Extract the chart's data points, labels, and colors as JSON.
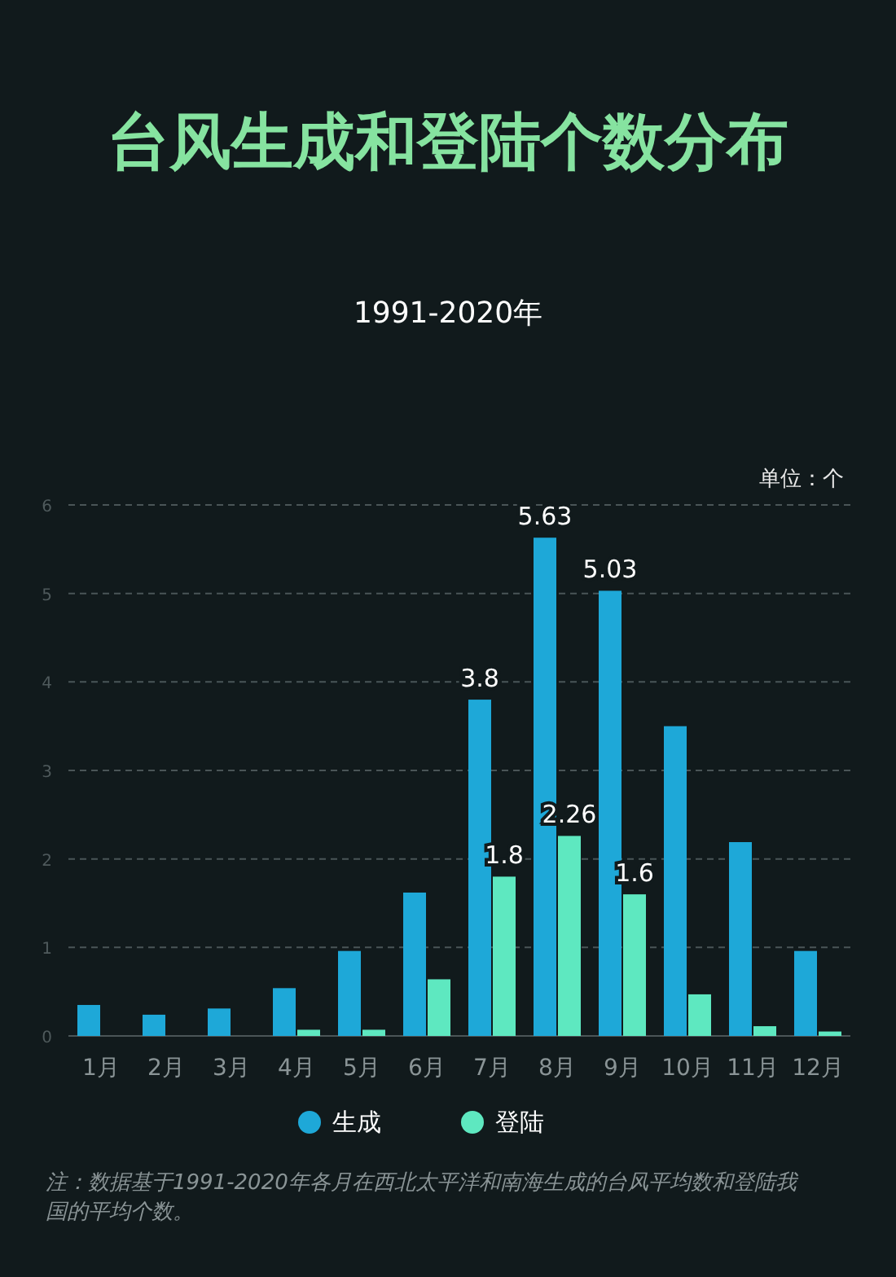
{
  "chart_data": {
    "type": "bar",
    "title": "台风生成和登陆个数分布",
    "subtitle": "1991-2020年",
    "ylabel": "单位：个",
    "categories": [
      "1月",
      "2月",
      "3月",
      "4月",
      "5月",
      "6月",
      "7月",
      "8月",
      "9月",
      "10月",
      "11月",
      "12月"
    ],
    "series": [
      {
        "name": "生成",
        "color": "#1ea8d8",
        "values": [
          0.35,
          0.24,
          0.31,
          0.54,
          0.96,
          1.62,
          3.8,
          5.63,
          5.03,
          3.5,
          2.19,
          0.96
        ],
        "value_labels": [
          null,
          null,
          null,
          null,
          null,
          null,
          "3.8",
          "5.63",
          "5.03",
          null,
          null,
          null
        ]
      },
      {
        "name": "登陆",
        "color": "#5ee8c0",
        "values": [
          0,
          0,
          0,
          0.07,
          0.07,
          0.64,
          1.8,
          2.26,
          1.6,
          0.47,
          0.11,
          0.05
        ],
        "value_labels": [
          null,
          null,
          null,
          null,
          null,
          null,
          "1.8",
          "2.26",
          "1.6",
          null,
          null,
          null
        ]
      }
    ],
    "ylim": [
      0,
      6
    ],
    "yticks": [
      0,
      1,
      2,
      3,
      4,
      5,
      6
    ],
    "grid": "y",
    "legend": "bottom",
    "annotations": [
      "注：数据基于1991-2020年各月在西北太平洋和南海生成的台风平均数和登陆我国的平均个数。"
    ]
  }
}
